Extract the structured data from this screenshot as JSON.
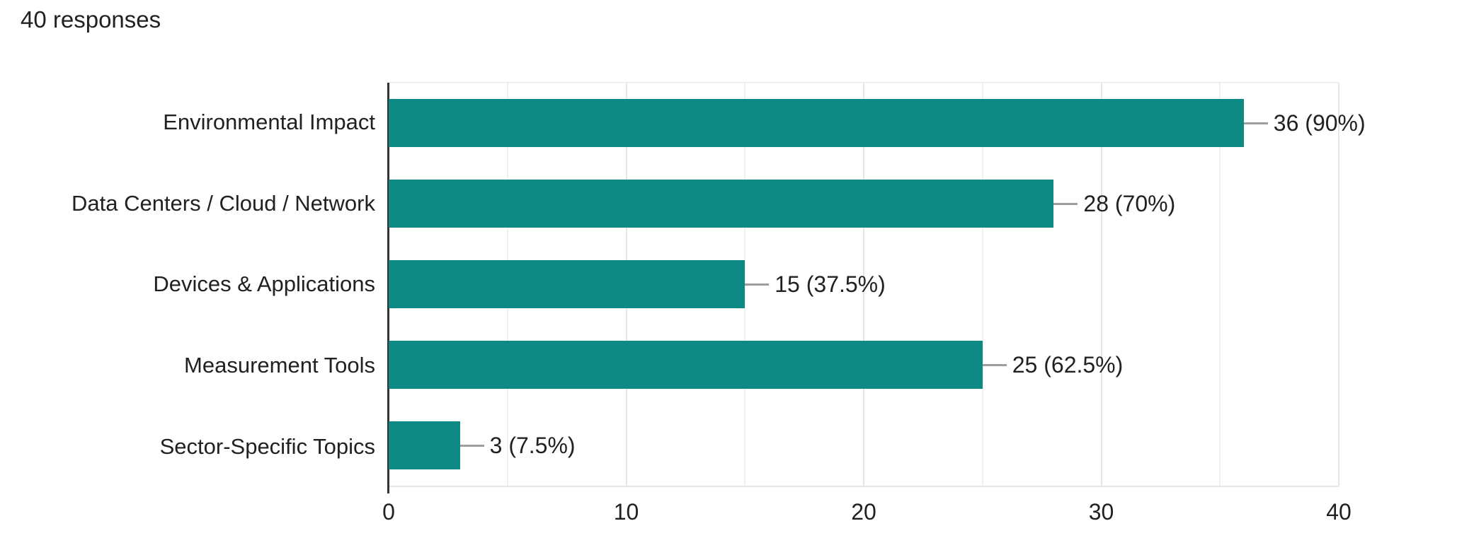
{
  "header": {
    "title": "40 responses"
  },
  "chart_data": {
    "type": "bar",
    "orientation": "horizontal",
    "title": "40 responses",
    "categories": [
      "Environmental Impact",
      "Data Centers / Cloud / Network",
      "Devices & Applications",
      "Measurement Tools",
      "Sector-Specific Topics"
    ],
    "values": [
      36,
      28,
      15,
      25,
      3
    ],
    "value_labels": [
      "36 (90%)",
      "28 (70%)",
      "15 (37.5%)",
      "25 (62.5%)",
      "3 (7.5%)"
    ],
    "xlim": [
      0,
      40
    ],
    "x_ticks": [
      "0",
      "10",
      "20",
      "30",
      "40"
    ],
    "gridlines_every": 5,
    "grid": "vertical",
    "legend": "none",
    "xlabel": "",
    "ylabel": "",
    "colors": {
      "bar": "#0d8a84",
      "grid_major": "#e6e6e6",
      "grid_minor": "#f0f0f0",
      "axis": "#333333",
      "connector": "#9e9e9e",
      "text": "#212121",
      "title": "#202124",
      "background": "#ffffff"
    }
  }
}
